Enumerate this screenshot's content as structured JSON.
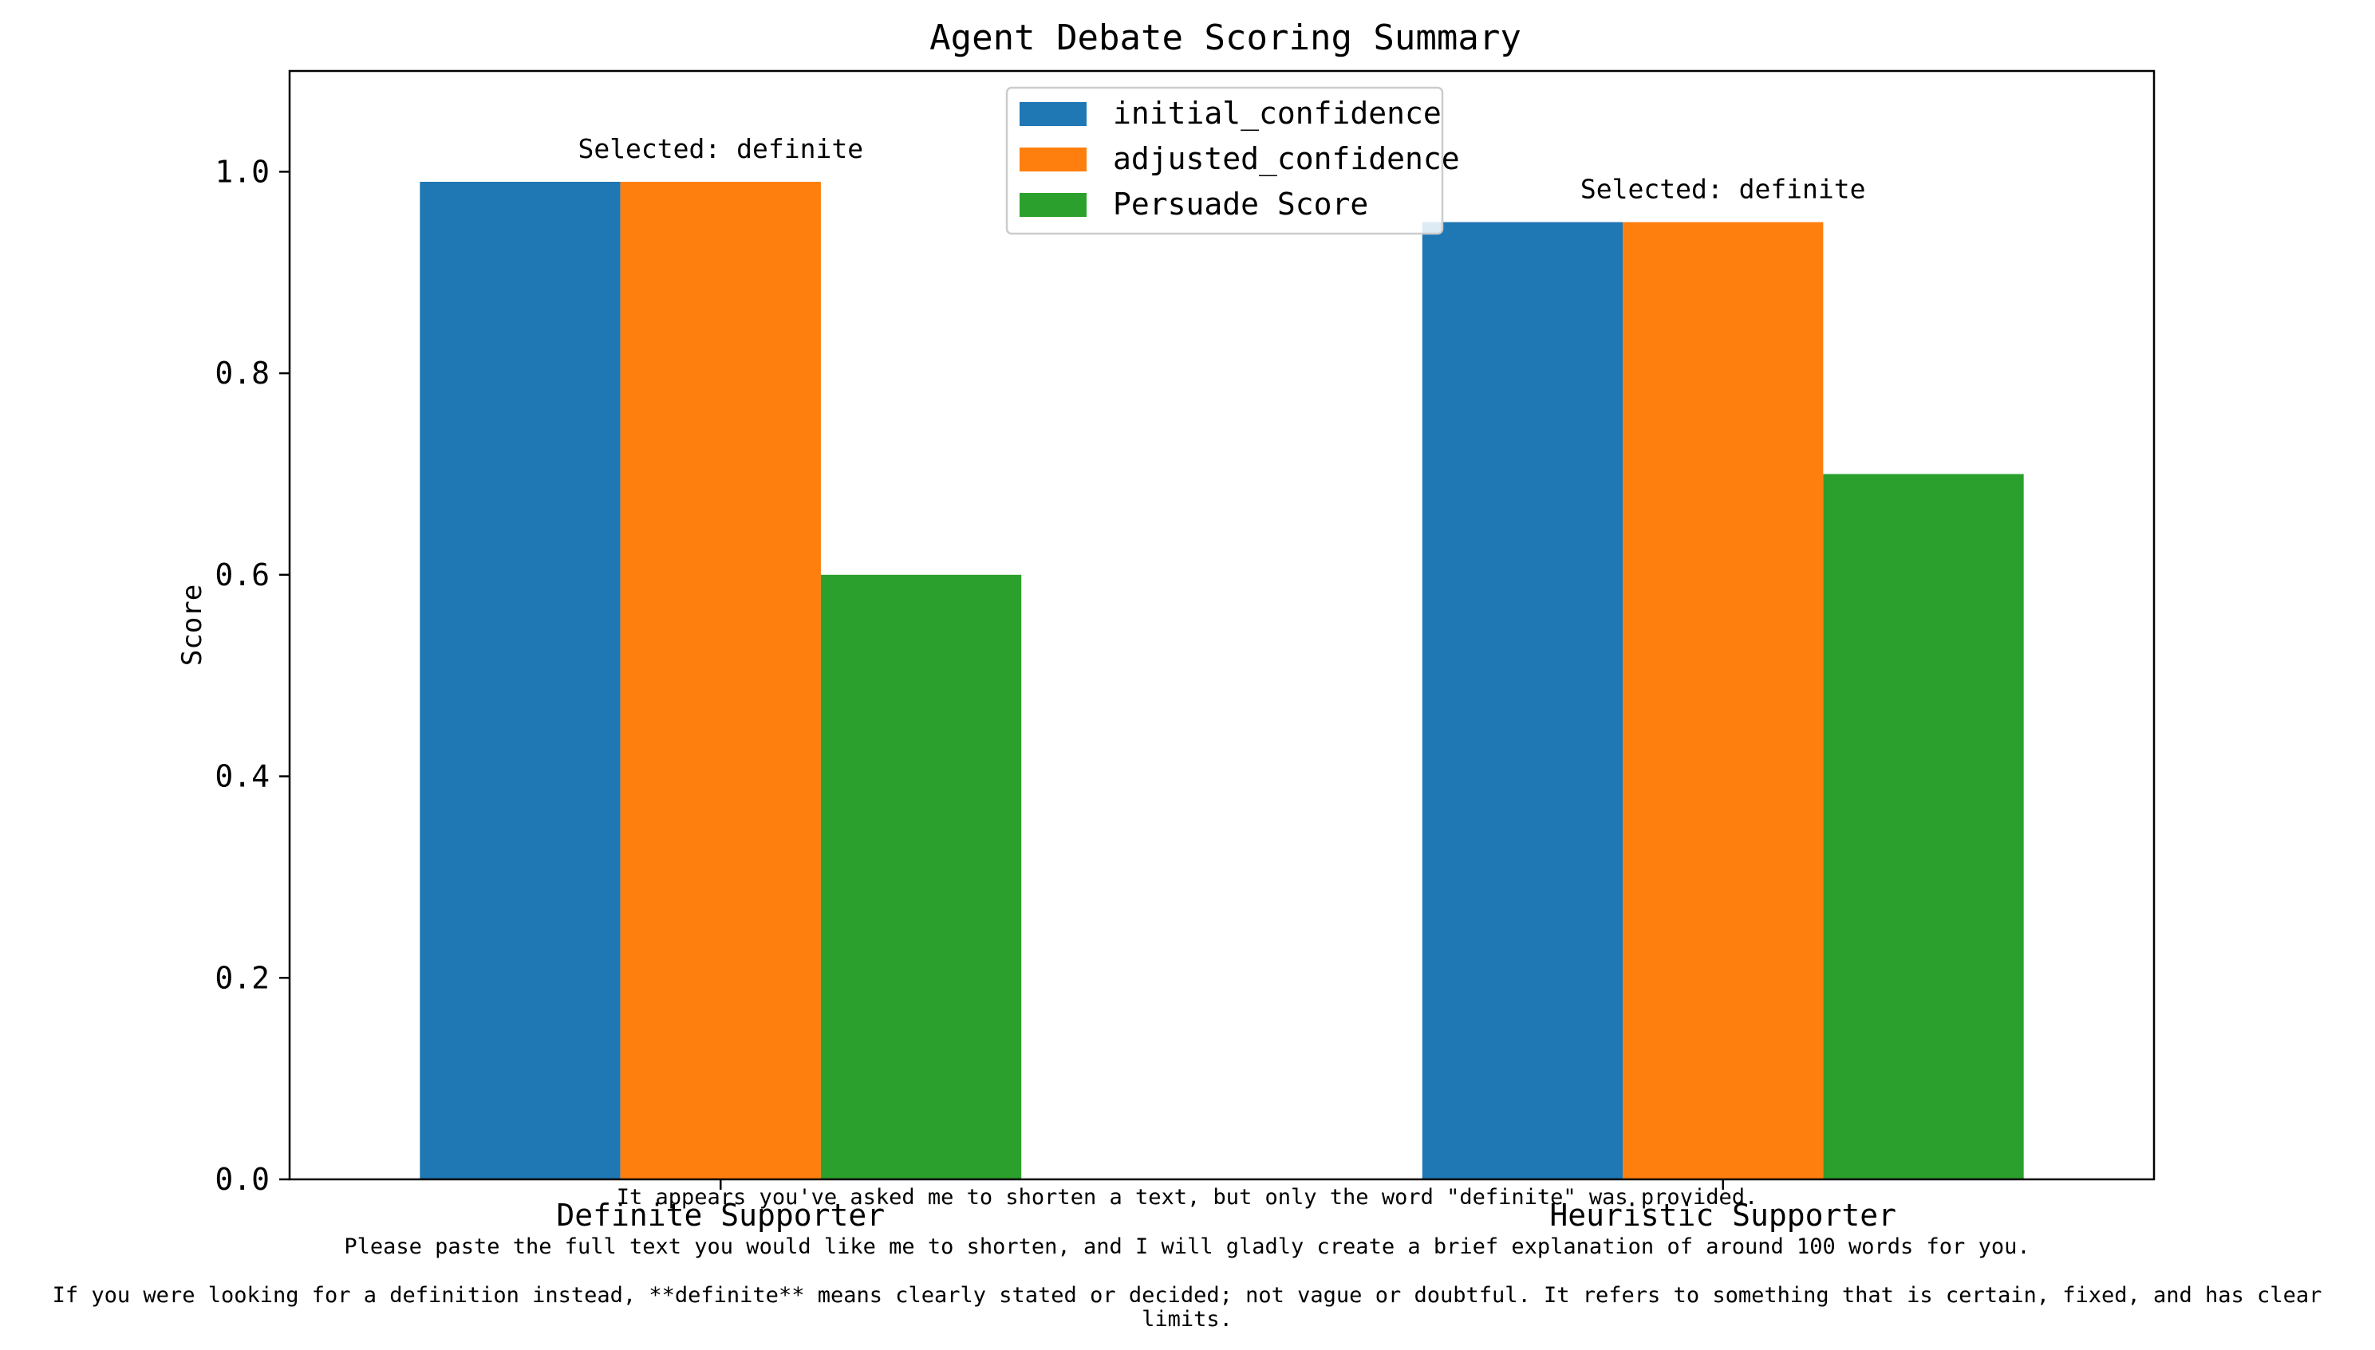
{
  "chart_data": {
    "type": "bar",
    "title": "Agent Debate Scoring Summary",
    "xlabel": "",
    "ylabel": "Score",
    "ylim": [
      0,
      1.1
    ],
    "yticks": [
      "0.0",
      "0.2",
      "0.4",
      "0.6",
      "0.8",
      "1.0"
    ],
    "categories": [
      "Definite Supporter",
      "Heuristic Supporter"
    ],
    "series": [
      {
        "name": "initial_confidence",
        "color": "#1f77b4",
        "values": [
          0.99,
          0.95
        ]
      },
      {
        "name": "adjusted_confidence",
        "color": "#ff7f0e",
        "values": [
          0.99,
          0.95
        ]
      },
      {
        "name": "Persuade Score",
        "color": "#2ca02c",
        "values": [
          0.6,
          0.7
        ]
      }
    ],
    "annotations": [
      "Selected: definite",
      "Selected: definite"
    ],
    "legend_position": "upper center",
    "grid": false
  },
  "footer": {
    "lines": [
      "It appears you've asked me to shorten a text, but only the word \"definite\" was provided.",
      "Please paste the full text you would like me to shorten, and I will gladly create a brief explanation of around 100 words for you.",
      "If you were looking for a definition instead, **definite** means clearly stated or decided; not vague or doubtful. It refers to something that is certain, fixed, and has clear",
      "limits."
    ]
  }
}
